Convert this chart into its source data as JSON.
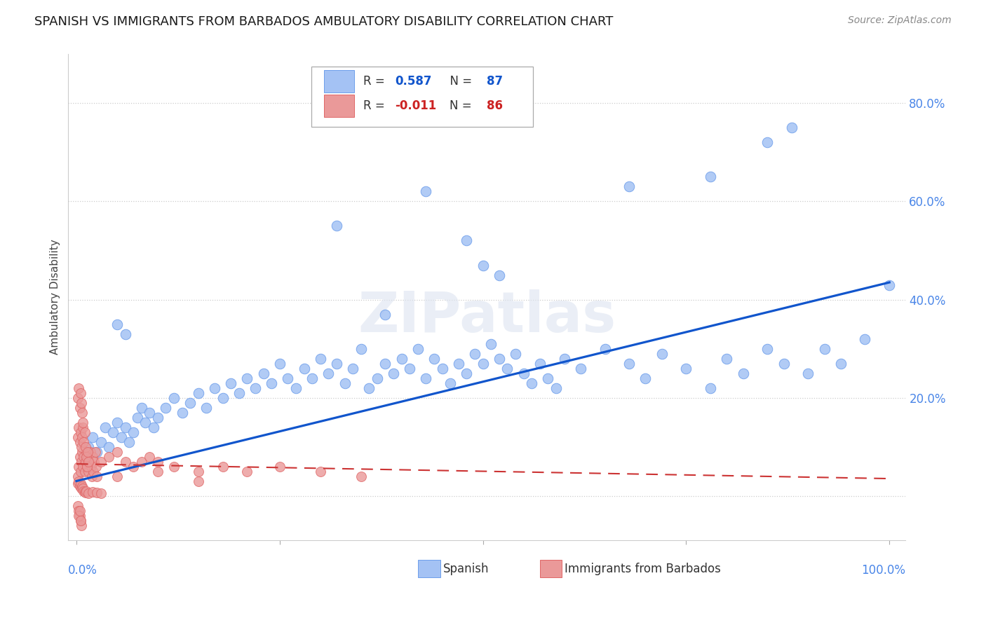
{
  "title": "SPANISH VS IMMIGRANTS FROM BARBADOS AMBULATORY DISABILITY CORRELATION CHART",
  "source": "Source: ZipAtlas.com",
  "ylabel": "Ambulatory Disability",
  "y_ticks": [
    0.0,
    0.2,
    0.4,
    0.6,
    0.8
  ],
  "y_tick_labels": [
    "",
    "20.0%",
    "40.0%",
    "60.0%",
    "80.0%"
  ],
  "xlim": [
    -0.01,
    1.02
  ],
  "ylim": [
    -0.09,
    0.9
  ],
  "blue_color": "#a4c2f4",
  "pink_color": "#ea9999",
  "blue_edge_color": "#6d9eeb",
  "pink_edge_color": "#e06666",
  "blue_line_color": "#1155cc",
  "pink_line_color": "#cc3333",
  "background_color": "#ffffff",
  "grid_color": "#cccccc",
  "title_fontsize": 13,
  "source_fontsize": 10,
  "tick_label_color": "#4a86e8",
  "blue_line_start_y": 0.03,
  "blue_line_end_y": 0.435,
  "pink_line_start_y": 0.065,
  "pink_line_end_y": 0.035,
  "spanish_x": [
    0.01,
    0.015,
    0.02,
    0.025,
    0.03,
    0.035,
    0.04,
    0.045,
    0.05,
    0.055,
    0.06,
    0.065,
    0.07,
    0.075,
    0.08,
    0.085,
    0.09,
    0.095,
    0.1,
    0.11,
    0.12,
    0.13,
    0.14,
    0.15,
    0.16,
    0.17,
    0.18,
    0.19,
    0.2,
    0.21,
    0.22,
    0.23,
    0.24,
    0.25,
    0.26,
    0.27,
    0.28,
    0.29,
    0.3,
    0.31,
    0.32,
    0.33,
    0.34,
    0.35,
    0.36,
    0.37,
    0.38,
    0.39,
    0.4,
    0.41,
    0.42,
    0.43,
    0.44,
    0.45,
    0.46,
    0.47,
    0.48,
    0.49,
    0.5,
    0.51,
    0.52,
    0.53,
    0.54,
    0.55,
    0.56,
    0.57,
    0.58,
    0.59,
    0.6,
    0.62,
    0.65,
    0.68,
    0.7,
    0.72,
    0.75,
    0.78,
    0.8,
    0.82,
    0.85,
    0.87,
    0.9,
    0.92,
    0.94,
    0.97,
    1.0,
    0.05,
    0.06
  ],
  "spanish_y": [
    0.08,
    0.1,
    0.12,
    0.09,
    0.11,
    0.14,
    0.1,
    0.13,
    0.15,
    0.12,
    0.14,
    0.11,
    0.13,
    0.16,
    0.18,
    0.15,
    0.17,
    0.14,
    0.16,
    0.18,
    0.2,
    0.17,
    0.19,
    0.21,
    0.18,
    0.22,
    0.2,
    0.23,
    0.21,
    0.24,
    0.22,
    0.25,
    0.23,
    0.27,
    0.24,
    0.22,
    0.26,
    0.24,
    0.28,
    0.25,
    0.27,
    0.23,
    0.26,
    0.3,
    0.22,
    0.24,
    0.27,
    0.25,
    0.28,
    0.26,
    0.3,
    0.24,
    0.28,
    0.26,
    0.23,
    0.27,
    0.25,
    0.29,
    0.27,
    0.31,
    0.28,
    0.26,
    0.29,
    0.25,
    0.23,
    0.27,
    0.24,
    0.22,
    0.28,
    0.26,
    0.3,
    0.27,
    0.24,
    0.29,
    0.26,
    0.22,
    0.28,
    0.25,
    0.3,
    0.27,
    0.25,
    0.3,
    0.27,
    0.32,
    0.43,
    0.35,
    0.33
  ],
  "spanish_outliers_x": [
    0.38,
    0.43,
    0.48,
    0.5,
    0.52,
    0.32,
    0.85,
    0.78,
    0.68,
    0.88
  ],
  "spanish_outliers_y": [
    0.37,
    0.62,
    0.52,
    0.47,
    0.45,
    0.55,
    0.72,
    0.65,
    0.63,
    0.75
  ],
  "barbados_x": [
    0.002,
    0.003,
    0.004,
    0.005,
    0.006,
    0.007,
    0.008,
    0.009,
    0.01,
    0.011,
    0.012,
    0.013,
    0.014,
    0.015,
    0.016,
    0.017,
    0.018,
    0.019,
    0.02,
    0.021,
    0.022,
    0.023,
    0.024,
    0.025,
    0.002,
    0.003,
    0.004,
    0.005,
    0.006,
    0.007,
    0.008,
    0.009,
    0.01,
    0.011,
    0.012,
    0.013,
    0.014,
    0.015,
    0.002,
    0.003,
    0.004,
    0.005,
    0.006,
    0.007,
    0.008,
    0.03,
    0.04,
    0.05,
    0.06,
    0.07,
    0.08,
    0.09,
    0.1,
    0.12,
    0.15,
    0.18,
    0.21,
    0.25,
    0.3,
    0.35,
    0.002,
    0.003,
    0.004,
    0.005,
    0.006,
    0.007,
    0.008,
    0.009,
    0.01,
    0.011,
    0.012,
    0.015,
    0.02,
    0.025,
    0.03,
    0.002,
    0.003,
    0.004,
    0.005,
    0.006,
    0.003,
    0.004,
    0.005,
    0.05,
    0.1,
    0.15
  ],
  "barbados_y": [
    0.04,
    0.06,
    0.08,
    0.05,
    0.07,
    0.09,
    0.06,
    0.08,
    0.05,
    0.07,
    0.09,
    0.06,
    0.08,
    0.05,
    0.07,
    0.09,
    0.06,
    0.04,
    0.08,
    0.05,
    0.07,
    0.09,
    0.06,
    0.04,
    0.12,
    0.14,
    0.11,
    0.13,
    0.1,
    0.12,
    0.14,
    0.11,
    0.13,
    0.1,
    0.08,
    0.06,
    0.09,
    0.07,
    0.2,
    0.22,
    0.18,
    0.21,
    0.19,
    0.17,
    0.15,
    0.07,
    0.08,
    0.09,
    0.07,
    0.06,
    0.07,
    0.08,
    0.07,
    0.06,
    0.05,
    0.06,
    0.05,
    0.06,
    0.05,
    0.04,
    0.025,
    0.03,
    0.02,
    0.025,
    0.015,
    0.02,
    0.015,
    0.01,
    0.008,
    0.006,
    0.01,
    0.005,
    0.008,
    0.006,
    0.005,
    -0.02,
    -0.03,
    -0.04,
    -0.05,
    -0.06,
    -0.04,
    -0.03,
    -0.05,
    0.04,
    0.05,
    0.03
  ]
}
